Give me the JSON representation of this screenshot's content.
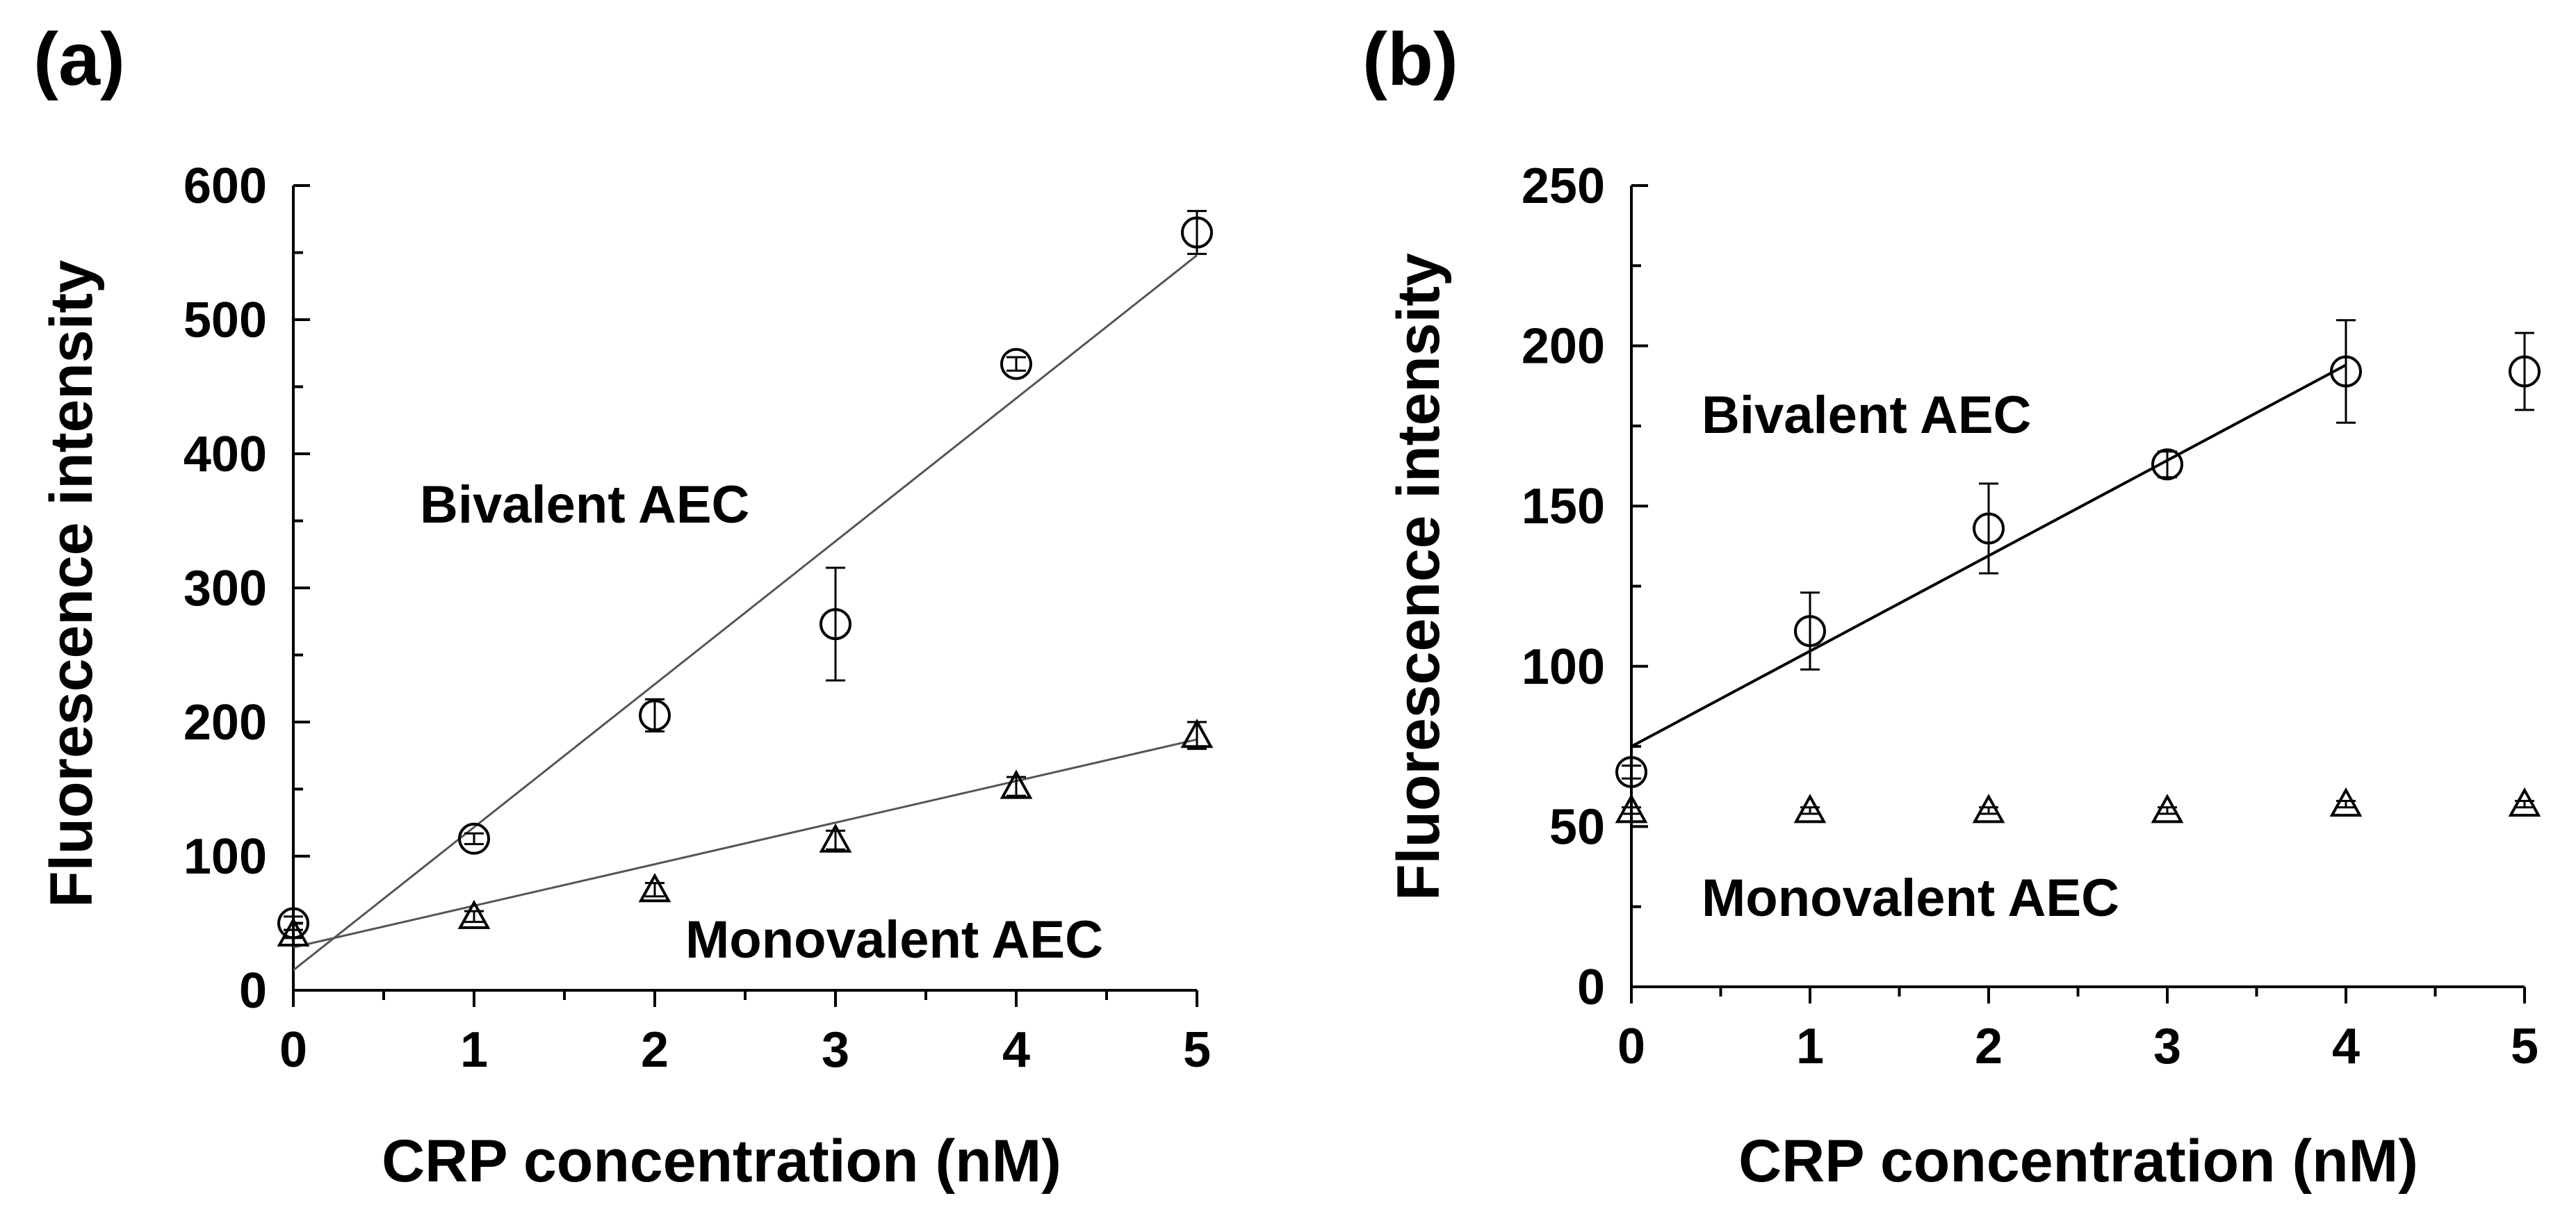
{
  "chart_data": [
    {
      "panel": "(a)",
      "type": "scatter",
      "xlabel": "CRP concentration  (nM)",
      "ylabel": "Fluorescence  intensity",
      "xlim": [
        0,
        5
      ],
      "ylim": [
        0,
        600
      ],
      "xticks": [
        0,
        1,
        2,
        3,
        4,
        5
      ],
      "yticks": [
        0,
        100,
        200,
        300,
        400,
        500,
        600
      ],
      "series": [
        {
          "name": "Bivalent AEC",
          "marker": "circle",
          "x": [
            0,
            1,
            2,
            3,
            4,
            5
          ],
          "y": [
            50,
            113,
            205,
            273,
            467,
            565
          ],
          "err": [
            5,
            4,
            12,
            42,
            5,
            16
          ],
          "fit": {
            "x0": 0,
            "y0": 15,
            "x1": 5,
            "y1": 548
          }
        },
        {
          "name": "Monovalent AEC",
          "marker": "triangle",
          "x": [
            0,
            1,
            2,
            3,
            4,
            5
          ],
          "y": [
            42,
            55,
            75,
            112,
            152,
            190
          ],
          "err": [
            3,
            4,
            5,
            7,
            7,
            10
          ],
          "fit": {
            "x0": 0,
            "y0": 32,
            "x1": 5,
            "y1": 187
          }
        }
      ]
    },
    {
      "panel": "(b)",
      "type": "scatter",
      "xlabel": "CRP concentration  (nM)",
      "ylabel": "Fluorescence  intensity",
      "xlim": [
        0,
        5
      ],
      "ylim": [
        0,
        250
      ],
      "xticks": [
        0,
        1,
        2,
        3,
        4,
        5
      ],
      "yticks": [
        0,
        50,
        100,
        150,
        200,
        250
      ],
      "series": [
        {
          "name": "Bivalent AEC",
          "marker": "circle",
          "x": [
            0,
            1,
            2,
            3,
            4,
            5
          ],
          "y": [
            67,
            111,
            143,
            163,
            192,
            192
          ],
          "err": [
            2,
            12,
            14,
            4,
            16,
            12
          ],
          "fit": {
            "x0": 0,
            "y0": 75,
            "x1": 4,
            "y1": 194
          }
        },
        {
          "name": "Monovalent AEC",
          "marker": "triangle",
          "x": [
            0,
            1,
            2,
            3,
            4,
            5
          ],
          "y": [
            55,
            55,
            55,
            55,
            57,
            57
          ],
          "err": [
            1,
            1,
            1,
            1,
            1,
            1
          ],
          "fit": null
        }
      ]
    }
  ]
}
